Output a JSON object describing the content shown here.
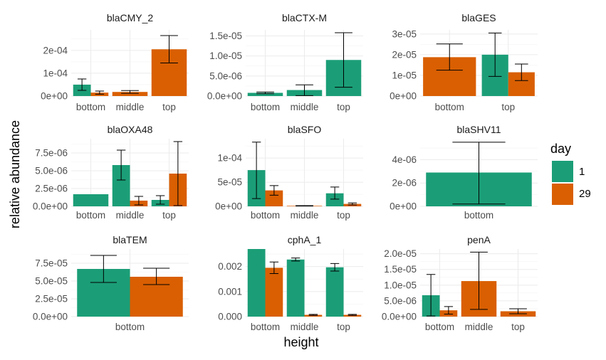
{
  "chart_data": {
    "type": "bar",
    "xlabel": "height",
    "ylabel": "relative abundance",
    "legend": {
      "title": "day",
      "placement": "right",
      "entries": [
        {
          "label": "1",
          "color": "#1b9e77"
        },
        {
          "label": "29",
          "color": "#d95f02"
        }
      ]
    },
    "grid": true,
    "panels": [
      {
        "title": "blaCMY_2",
        "categories": [
          "bottom",
          "middle",
          "top"
        ],
        "ylim": [
          0,
          0.00029
        ],
        "yticks": [
          0,
          0.0001,
          0.0002
        ],
        "ytick_labels": [
          "0e+00",
          "1e-04",
          "2e-04"
        ],
        "bars": [
          {
            "category": "bottom",
            "day": "1",
            "value": 5e-05,
            "err": [
              2.5e-05,
              7.5e-05
            ]
          },
          {
            "category": "bottom",
            "day": "29",
            "value": 1.5e-05,
            "err": [
              8e-06,
              2.2e-05
            ]
          },
          {
            "category": "middle",
            "day": "29",
            "value": 1.8e-05,
            "err": [
              1.2e-05,
              2.4e-05
            ],
            "solo": true
          },
          {
            "category": "top",
            "day": "29",
            "value": 0.000205,
            "err": [
              0.000145,
              0.000265
            ],
            "solo": true
          }
        ]
      },
      {
        "title": "blaCTX-M",
        "categories": [
          "bottom",
          "middle",
          "top"
        ],
        "ylim": [
          0,
          1.65e-05
        ],
        "yticks": [
          0,
          5e-06,
          1e-05,
          1.5e-05
        ],
        "ytick_labels": [
          "0.0e+00",
          "5.0e-06",
          "1.0e-05",
          "1.5e-05"
        ],
        "bars": [
          {
            "category": "bottom",
            "day": "1",
            "value": 8e-07,
            "err": [
              6e-07,
              1e-06
            ],
            "solo": true
          },
          {
            "category": "middle",
            "day": "1",
            "value": 1.5e-06,
            "err": [
              1e-07,
              2.8e-06
            ],
            "solo": true
          },
          {
            "category": "top",
            "day": "1",
            "value": 9e-06,
            "err": [
              2.2e-06,
              1.58e-05
            ],
            "solo": true
          }
        ]
      },
      {
        "title": "blaGES",
        "categories": [
          "bottom",
          "top"
        ],
        "ylim": [
          0,
          3.2e-05
        ],
        "yticks": [
          0,
          1e-05,
          2e-05,
          3e-05
        ],
        "ytick_labels": [
          "0e+00",
          "1e-05",
          "2e-05",
          "3e-05"
        ],
        "bars": [
          {
            "category": "bottom",
            "day": "29",
            "value": 1.88e-05,
            "err": [
              1.25e-05,
              2.52e-05
            ],
            "solo": true
          },
          {
            "category": "top",
            "day": "1",
            "value": 2e-05,
            "err": [
              9.5e-06,
              3.05e-05
            ]
          },
          {
            "category": "top",
            "day": "29",
            "value": 1.15e-05,
            "err": [
              7.5e-06,
              1.55e-05
            ]
          }
        ]
      },
      {
        "title": "blaOXA48",
        "categories": [
          "bottom",
          "middle",
          "top"
        ],
        "ylim": [
          0,
          9.5e-06
        ],
        "yticks": [
          0,
          2.5e-06,
          5e-06,
          7.5e-06
        ],
        "ytick_labels": [
          "0.0e+00",
          "2.5e-06",
          "5.0e-06",
          "7.5e-06"
        ],
        "bars": [
          {
            "category": "bottom",
            "day": "1",
            "value": 1.7e-06,
            "solo": true
          },
          {
            "category": "middle",
            "day": "1",
            "value": 5.8e-06,
            "err": [
              3.7e-06,
              7.9e-06
            ]
          },
          {
            "category": "middle",
            "day": "29",
            "value": 8e-07,
            "err": [
              2e-07,
              1.4e-06
            ]
          },
          {
            "category": "top",
            "day": "1",
            "value": 9e-07,
            "err": [
              3e-07,
              1.5e-06
            ]
          },
          {
            "category": "top",
            "day": "29",
            "value": 4.6e-06,
            "err": [
              1e-07,
              9.1e-06
            ]
          }
        ]
      },
      {
        "title": "blaSFO",
        "categories": [
          "bottom",
          "middle",
          "top"
        ],
        "ylim": [
          0,
          0.00014
        ],
        "yticks": [
          0,
          5e-05,
          0.0001
        ],
        "ytick_labels": [
          "0e+00",
          "5e-05",
          "1e-04"
        ],
        "bars": [
          {
            "category": "bottom",
            "day": "1",
            "value": 7.5e-05,
            "err": [
              1.6e-05,
              0.000133
            ]
          },
          {
            "category": "bottom",
            "day": "29",
            "value": 3.3e-05,
            "err": [
              2.3e-05,
              4.3e-05
            ]
          },
          {
            "category": "middle",
            "day": "29",
            "value": 1e-06,
            "err": [
              5e-07,
              1.5e-06
            ],
            "solo": true
          },
          {
            "category": "top",
            "day": "1",
            "value": 2.7e-05,
            "err": [
              1.5e-05,
              4e-05
            ]
          },
          {
            "category": "top",
            "day": "29",
            "value": 5e-06,
            "err": [
              3e-06,
              7e-06
            ]
          }
        ]
      },
      {
        "title": "blaSHV11",
        "categories": [
          "bottom"
        ],
        "ylim": [
          0,
          5.8e-06
        ],
        "yticks": [
          0,
          2e-06,
          4e-06
        ],
        "ytick_labels": [
          "0e+00",
          "2e-06",
          "4e-06"
        ],
        "bars": [
          {
            "category": "bottom",
            "day": "1",
            "value": 2.9e-06,
            "err": [
              2e-07,
              5.5e-06
            ],
            "solo": true
          }
        ]
      },
      {
        "title": "blaTEM",
        "categories": [
          "bottom"
        ],
        "ylim": [
          0,
          9.5e-05
        ],
        "yticks": [
          0,
          2.5e-05,
          5e-05,
          7.5e-05
        ],
        "ytick_labels": [
          "0.0e+00",
          "2.5e-05",
          "5.0e-05",
          "7.5e-05"
        ],
        "bars": [
          {
            "category": "bottom",
            "day": "1",
            "value": 6.7e-05,
            "err": [
              4.8e-05,
              8.6e-05
            ]
          },
          {
            "category": "bottom",
            "day": "29",
            "value": 5.6e-05,
            "err": [
              4.5e-05,
              6.8e-05
            ]
          }
        ]
      },
      {
        "title": "cphA_1",
        "categories": [
          "bottom",
          "middle",
          "top"
        ],
        "ylim": [
          0,
          0.0027
        ],
        "yticks": [
          0,
          0.001,
          0.002
        ],
        "ytick_labels": [
          "0.000",
          "0.001",
          "0.002"
        ],
        "bars": [
          {
            "category": "bottom",
            "day": "1",
            "value": 0.0027
          },
          {
            "category": "bottom",
            "day": "29",
            "value": 0.00195,
            "err": [
              0.00172,
              0.00218
            ]
          },
          {
            "category": "middle",
            "day": "1",
            "value": 0.00228,
            "err": [
              0.00222,
              0.00234
            ]
          },
          {
            "category": "middle",
            "day": "29",
            "value": 7e-05,
            "err": [
              5e-05,
              9e-05
            ]
          },
          {
            "category": "top",
            "day": "1",
            "value": 0.00197,
            "err": [
              0.00182,
              0.00212
            ]
          },
          {
            "category": "top",
            "day": "29",
            "value": 7e-05,
            "err": [
              5e-05,
              9e-05
            ]
          }
        ]
      },
      {
        "title": "penA",
        "categories": [
          "bottom",
          "middle",
          "top"
        ],
        "ylim": [
          0,
          2.15e-05
        ],
        "yticks": [
          0,
          5e-06,
          1e-05,
          1.5e-05,
          2e-05
        ],
        "ytick_labels": [
          "0.0e+00",
          "5.0e-06",
          "1.0e-05",
          "1.5e-05",
          "2.0e-05"
        ],
        "bars": [
          {
            "category": "bottom",
            "day": "1",
            "value": 6.8e-06,
            "err": [
              2e-07,
              1.34e-05
            ]
          },
          {
            "category": "bottom",
            "day": "29",
            "value": 2e-06,
            "err": [
              8e-07,
              3.2e-06
            ]
          },
          {
            "category": "middle",
            "day": "29",
            "value": 1.13e-05,
            "err": [
              2.3e-06,
              2.05e-05
            ],
            "solo": true
          },
          {
            "category": "top",
            "day": "29",
            "value": 1.7e-06,
            "err": [
              9e-07,
              2.5e-06
            ],
            "solo": true
          }
        ]
      }
    ]
  }
}
